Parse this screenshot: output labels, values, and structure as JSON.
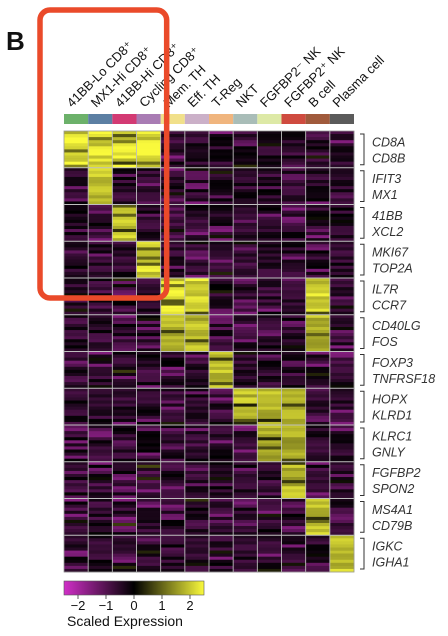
{
  "panel_letter": "B",
  "chart_data": {
    "type": "heatmap",
    "columns": [
      {
        "label": "41BB-Lo CD8⁺",
        "color": "#6cb16a"
      },
      {
        "label": "MX1-Hi CD8⁺",
        "color": "#5c7fa3"
      },
      {
        "label": "41BB-Hi CD8⁺",
        "color": "#d33a73"
      },
      {
        "label": "Cycling CD8⁺",
        "color": "#a97cb4"
      },
      {
        "label": "Mem. TH",
        "color": "#f1e08a"
      },
      {
        "label": "Eff. TH",
        "color": "#cbb0c8"
      },
      {
        "label": "T-Reg",
        "color": "#f0b57e"
      },
      {
        "label": "NKT",
        "color": "#a9bdb8"
      },
      {
        "label": "FGFBP2⁻ NK",
        "color": "#dde9a6"
      },
      {
        "label": "FGFBP2⁺ NK",
        "color": "#cf4b3f"
      },
      {
        "label": "B cell",
        "color": "#a05a3c"
      },
      {
        "label": "Plasma cell",
        "color": "#5b5b5b"
      }
    ],
    "gene_groups": [
      {
        "genes": [
          "CD8A",
          "CD8B"
        ],
        "high": [
          0,
          1,
          2,
          3
        ],
        "weight": 1.0
      },
      {
        "genes": [
          "IFIT3",
          "MX1"
        ],
        "high": [
          1
        ],
        "weight": 0.85
      },
      {
        "genes": [
          "41BB",
          "XCL2"
        ],
        "high": [
          2
        ],
        "weight": 0.9
      },
      {
        "genes": [
          "MKI67",
          "TOP2A"
        ],
        "high": [
          3
        ],
        "weight": 0.95
      },
      {
        "genes": [
          "IL7R",
          "CCR7"
        ],
        "high": [
          4,
          5,
          10
        ],
        "weight": 1.0
      },
      {
        "genes": [
          "CD40LG",
          "FOS"
        ],
        "high": [
          4,
          5,
          10
        ],
        "weight": 0.8
      },
      {
        "genes": [
          "FOXP3",
          "TNFRSF18"
        ],
        "high": [
          6
        ],
        "weight": 0.8
      },
      {
        "genes": [
          "HOPX",
          "KLRD1"
        ],
        "high": [
          7,
          8,
          9
        ],
        "weight": 0.8
      },
      {
        "genes": [
          "KLRC1",
          "GNLY"
        ],
        "high": [
          8,
          9
        ],
        "weight": 0.7
      },
      {
        "genes": [
          "FGFBP2",
          "SPON2"
        ],
        "high": [
          9
        ],
        "weight": 0.8
      },
      {
        "genes": [
          "MS4A1",
          "CD79B"
        ],
        "high": [
          10
        ],
        "weight": 0.9
      },
      {
        "genes": [
          "IGKC",
          "IGHA1"
        ],
        "high": [
          11
        ],
        "weight": 0.9
      }
    ],
    "legend": {
      "title": "Scaled Expression",
      "ticks": [
        "−2",
        "−1",
        "0",
        "1",
        "2"
      ],
      "range": [
        -2.5,
        2.5
      ],
      "colors": [
        "#d02fc7",
        "#000000",
        "#fafa3c"
      ]
    },
    "highlight": {
      "columns": [
        0,
        3
      ],
      "color": "#ea4a2a"
    }
  }
}
